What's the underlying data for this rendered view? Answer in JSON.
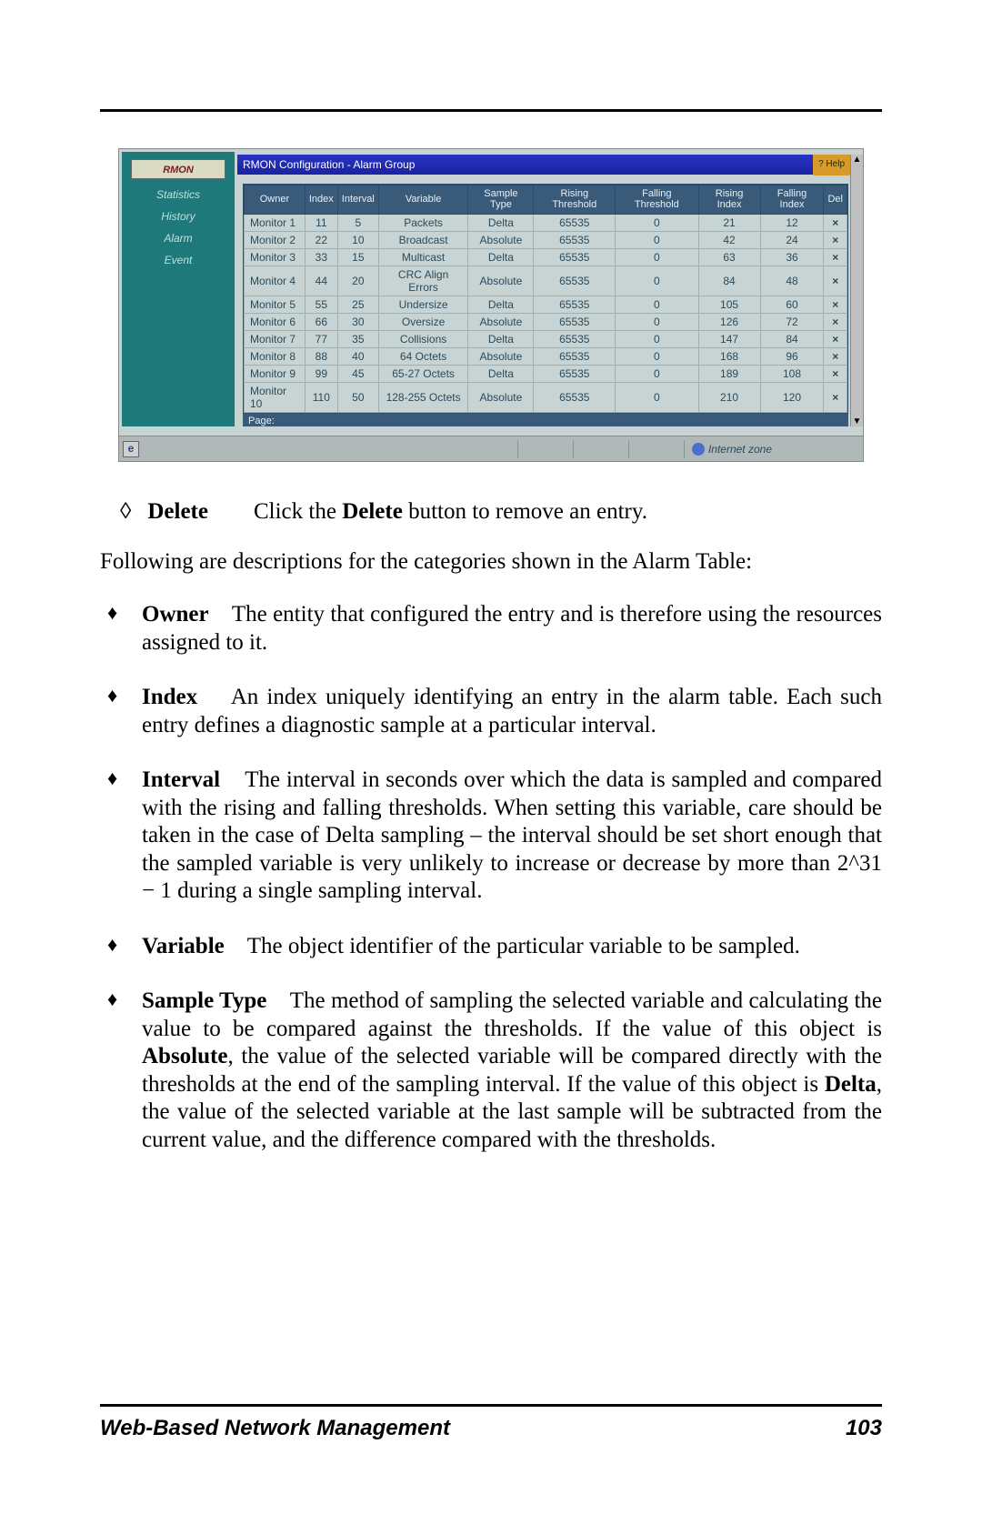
{
  "screenshot": {
    "sidebar": {
      "title": "RMON",
      "items": [
        "Statistics",
        "History",
        "Alarm",
        "Event"
      ]
    },
    "titlebar": "RMON Configuration - Alarm Group",
    "help_label": "? Help",
    "headers": [
      "Owner",
      "Index",
      "Interval",
      "Variable",
      "Sample Type",
      "Rising Threshold",
      "Falling Threshold",
      "Rising Index",
      "Falling Index",
      "Del"
    ],
    "rows": [
      {
        "owner": "Monitor 1",
        "index": "11",
        "interval": "5",
        "variable": "Packets",
        "sample": "Delta",
        "rise": "65535",
        "fall": "0",
        "ri": "21",
        "fi": "12",
        "del": "×"
      },
      {
        "owner": "Monitor 2",
        "index": "22",
        "interval": "10",
        "variable": "Broadcast",
        "sample": "Absolute",
        "rise": "65535",
        "fall": "0",
        "ri": "42",
        "fi": "24",
        "del": "×"
      },
      {
        "owner": "Monitor 3",
        "index": "33",
        "interval": "15",
        "variable": "Multicast",
        "sample": "Delta",
        "rise": "65535",
        "fall": "0",
        "ri": "63",
        "fi": "36",
        "del": "×"
      },
      {
        "owner": "Monitor 4",
        "index": "44",
        "interval": "20",
        "variable": "CRC Align Errors",
        "sample": "Absolute",
        "rise": "65535",
        "fall": "0",
        "ri": "84",
        "fi": "48",
        "del": "×"
      },
      {
        "owner": "Monitor 5",
        "index": "55",
        "interval": "25",
        "variable": "Undersize",
        "sample": "Delta",
        "rise": "65535",
        "fall": "0",
        "ri": "105",
        "fi": "60",
        "del": "×"
      },
      {
        "owner": "Monitor 6",
        "index": "66",
        "interval": "30",
        "variable": "Oversize",
        "sample": "Absolute",
        "rise": "65535",
        "fall": "0",
        "ri": "126",
        "fi": "72",
        "del": "×"
      },
      {
        "owner": "Monitor 7",
        "index": "77",
        "interval": "35",
        "variable": "Collisions",
        "sample": "Delta",
        "rise": "65535",
        "fall": "0",
        "ri": "147",
        "fi": "84",
        "del": "×"
      },
      {
        "owner": "Monitor 8",
        "index": "88",
        "interval": "40",
        "variable": "64 Octets",
        "sample": "Absolute",
        "rise": "65535",
        "fall": "0",
        "ri": "168",
        "fi": "96",
        "del": "×"
      },
      {
        "owner": "Monitor 9",
        "index": "99",
        "interval": "45",
        "variable": "65-27 Octets",
        "sample": "Delta",
        "rise": "65535",
        "fall": "0",
        "ri": "189",
        "fi": "108",
        "del": "×"
      },
      {
        "owner": "Monitor 10",
        "index": "110",
        "interval": "50",
        "variable": "128-255 Octets",
        "sample": "Absolute",
        "rise": "65535",
        "fall": "0",
        "ri": "210",
        "fi": "120",
        "del": "×"
      }
    ],
    "page_label": "Page:",
    "zone_label": "Internet zone",
    "colors": {
      "sidebar_bg": "#1e7a7a",
      "sidebar_button_bg": "#d9dbc4",
      "sidebar_button_text": "#7a1c1c",
      "sidebar_link": "#bfe0e0",
      "titlebar_bg": "#2933c4",
      "header_bg": "#3a5a7a",
      "header_text": "#e8f0f6",
      "cell_bg": "#c8d4d4",
      "cell_text": "#2a4a5a",
      "help_bg": "#d89a28"
    }
  },
  "doc": {
    "delete_term": "Delete",
    "delete_desc_pre": "Click the ",
    "delete_desc_bold": "Delete",
    "delete_desc_post": " button to remove an entry.",
    "intro": "Following are descriptions for the categories shown in the Alarm Table:",
    "items": {
      "owner": {
        "term": "Owner",
        "text": "The entity that configured the entry and is therefore using the resources assigned to it."
      },
      "index": {
        "term": "Index",
        "text": "An index uniquely identifying an entry in the alarm table.  Each such entry defines a diagnostic sample at a particular interval."
      },
      "interval": {
        "term": "Interval",
        "text": "The interval in seconds over which the data is sampled and compared with the rising and falling thresholds.  When setting this variable, care should be taken in the case of Delta sampling – the interval should be set short enough that the sampled variable is very unlikely to increase or decrease by more than 2^31 − 1 during a single sampling interval."
      },
      "variable": {
        "term": "Variable",
        "text": "The object identifier of the particular variable to be sampled."
      },
      "sample": {
        "term": "Sample Type",
        "pre": "The method of sampling the selected variable and calculating the value to be compared against the thresholds.  If the value of this object is ",
        "b1": "Absolute",
        "mid": ", the value of the selected variable will be compared directly with the thresholds at the end of the sampling interval.  If the value of this object is ",
        "b2": "Delta",
        "post": ", the value of the selected variable at the last sample will be subtracted from the current value, and the difference compared with the thresholds."
      }
    },
    "footer_title": "Web-Based Network Management",
    "footer_page": "103"
  }
}
